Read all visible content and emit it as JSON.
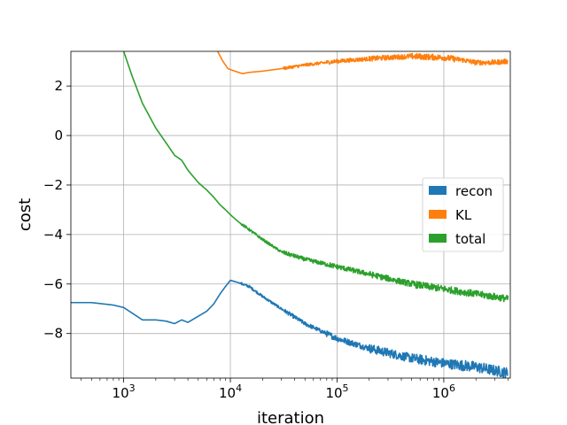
{
  "chart_data": {
    "type": "line",
    "x_scale": "log",
    "xlim": [
      320,
      4200000
    ],
    "ylim": [
      -9.8,
      3.4
    ],
    "xlabel": "iteration",
    "ylabel": "cost",
    "grid": true,
    "legend_position": "center-right",
    "x_ticks": [
      {
        "base": "10",
        "exp": "3",
        "value": 1000
      },
      {
        "base": "10",
        "exp": "4",
        "value": 10000
      },
      {
        "base": "10",
        "exp": "5",
        "value": 100000
      },
      {
        "base": "10",
        "exp": "6",
        "value": 1000000
      }
    ],
    "y_ticks": [
      {
        "label": "−8",
        "value": -8
      },
      {
        "label": "−6",
        "value": -6
      },
      {
        "label": "−4",
        "value": -4
      },
      {
        "label": "−2",
        "value": -2
      },
      {
        "label": "0",
        "value": 0
      },
      {
        "label": "2",
        "value": 2
      }
    ],
    "series": [
      {
        "name": "recon",
        "color": "#1f77b4",
        "noise": [
          0,
          0,
          0,
          0,
          0.05,
          0.08,
          0.12,
          0.18,
          0.2,
          0.22
        ],
        "x": [
          320,
          500,
          800,
          1000,
          1500,
          2000,
          2500,
          3000,
          3500,
          4000,
          5000,
          6000,
          7000,
          8000,
          9000,
          10000,
          12000,
          15000,
          20000,
          30000,
          50000,
          100000,
          200000,
          500000,
          1000000,
          2000000,
          4000000
        ],
        "y": [
          -6.75,
          -6.75,
          -6.85,
          -6.95,
          -7.45,
          -7.45,
          -7.5,
          -7.6,
          -7.45,
          -7.55,
          -7.3,
          -7.1,
          -6.8,
          -6.4,
          -6.1,
          -5.85,
          -5.95,
          -6.1,
          -6.5,
          -7.0,
          -7.6,
          -8.2,
          -8.6,
          -9.0,
          -9.2,
          -9.35,
          -9.6
        ]
      },
      {
        "name": "KL",
        "color": "#ff7f0e",
        "noise": [
          0,
          0,
          0,
          0,
          0,
          0.06,
          0.08,
          0.1,
          0.12,
          0.1
        ],
        "x": [
          7600,
          8500,
          9500,
          11000,
          13000,
          15000,
          20000,
          30000,
          50000,
          100000,
          200000,
          300000,
          500000,
          1000000,
          1500000,
          2000000,
          3000000,
          4000000
        ],
        "y": [
          3.4,
          3.0,
          2.7,
          2.6,
          2.5,
          2.55,
          2.6,
          2.7,
          2.85,
          3.0,
          3.1,
          3.15,
          3.2,
          3.15,
          3.05,
          2.95,
          2.95,
          3.0
        ]
      },
      {
        "name": "total",
        "color": "#2ca02c",
        "noise": [
          0,
          0,
          0,
          0,
          0.05,
          0.08,
          0.1,
          0.12,
          0.14,
          0.14
        ],
        "x": [
          1000,
          1200,
          1500,
          2000,
          2500,
          3000,
          3500,
          4000,
          5000,
          6000,
          7000,
          8000,
          9000,
          10000,
          12000,
          15000,
          20000,
          30000,
          50000,
          100000,
          200000,
          500000,
          1000000,
          2000000,
          4000000
        ],
        "y": [
          3.4,
          2.4,
          1.3,
          0.3,
          -0.3,
          -0.8,
          -1.0,
          -1.4,
          -1.9,
          -2.2,
          -2.5,
          -2.8,
          -3.0,
          -3.2,
          -3.5,
          -3.8,
          -4.2,
          -4.7,
          -5.0,
          -5.3,
          -5.6,
          -6.0,
          -6.2,
          -6.4,
          -6.6
        ]
      }
    ]
  }
}
